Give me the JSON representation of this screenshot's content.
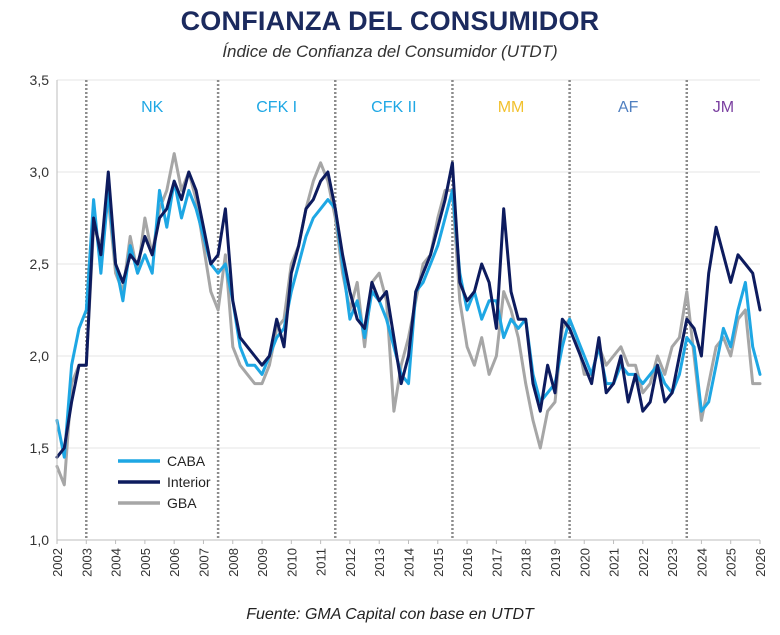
{
  "header": {
    "title": "CONFIANZA DEL CONSUMIDOR",
    "subtitle": "Índice de Confianza del Consumidor (UTDT)"
  },
  "footer": {
    "source": "Fuente: GMA Capital con base en UTDT"
  },
  "colors": {
    "CABA": "#1ea7e4",
    "Interior": "#0d1b5e",
    "GBA": "#a6a6a6",
    "grid": "#e6e6e6",
    "divider": "#8c8c8c"
  },
  "chart_data": {
    "type": "line",
    "title": "",
    "xlabel": "",
    "ylabel": "",
    "xlim": [
      2002,
      2026
    ],
    "ylim": [
      1.0,
      3.5
    ],
    "yticks": [
      "1,0",
      "1,5",
      "2,0",
      "2,5",
      "3,0",
      "3,5"
    ],
    "yticks_values": [
      1.0,
      1.5,
      2.0,
      2.5,
      3.0,
      3.5
    ],
    "xticks": [
      "2002",
      "2003",
      "2004",
      "2005",
      "2006",
      "2007",
      "2008",
      "2009",
      "2010",
      "2011",
      "2012",
      "2013",
      "2014",
      "2015",
      "2016",
      "2017",
      "2018",
      "2019",
      "2020",
      "2021",
      "2022",
      "2023",
      "2024",
      "2025",
      "2026"
    ],
    "grid": "horizontal",
    "legend": {
      "position": "bottom-left",
      "entries": [
        "CABA",
        "Interior",
        "GBA"
      ]
    },
    "periods": [
      {
        "label": "NK",
        "start": 2003.0,
        "end": 2007.5,
        "color": "#1ea7e4"
      },
      {
        "label": "CFK I",
        "start": 2007.5,
        "end": 2011.5,
        "color": "#1ea7e4"
      },
      {
        "label": "CFK II",
        "start": 2011.5,
        "end": 2015.5,
        "color": "#1ea7e4"
      },
      {
        "label": "MM",
        "start": 2015.5,
        "end": 2019.5,
        "color": "#f2c12e"
      },
      {
        "label": "AF",
        "start": 2019.5,
        "end": 2023.5,
        "color": "#4f7fc0"
      },
      {
        "label": "JM",
        "start": 2023.5,
        "end": 2026.0,
        "color": "#7a3fa0"
      }
    ],
    "dividers": [
      2003.0,
      2007.5,
      2011.5,
      2015.5,
      2019.5,
      2023.5
    ],
    "x": [
      2002.0,
      2002.25,
      2002.5,
      2002.75,
      2003.0,
      2003.25,
      2003.5,
      2003.75,
      2004.0,
      2004.25,
      2004.5,
      2004.75,
      2005.0,
      2005.25,
      2005.5,
      2005.75,
      2006.0,
      2006.25,
      2006.5,
      2006.75,
      2007.0,
      2007.25,
      2007.5,
      2007.75,
      2008.0,
      2008.25,
      2008.5,
      2008.75,
      2009.0,
      2009.25,
      2009.5,
      2009.75,
      2010.0,
      2010.25,
      2010.5,
      2010.75,
      2011.0,
      2011.25,
      2011.5,
      2011.75,
      2012.0,
      2012.25,
      2012.5,
      2012.75,
      2013.0,
      2013.25,
      2013.5,
      2013.75,
      2014.0,
      2014.25,
      2014.5,
      2014.75,
      2015.0,
      2015.25,
      2015.5,
      2015.75,
      2016.0,
      2016.25,
      2016.5,
      2016.75,
      2017.0,
      2017.25,
      2017.5,
      2017.75,
      2018.0,
      2018.25,
      2018.5,
      2018.75,
      2019.0,
      2019.25,
      2019.5,
      2019.75,
      2020.0,
      2020.25,
      2020.5,
      2020.75,
      2021.0,
      2021.25,
      2021.5,
      2021.75,
      2022.0,
      2022.25,
      2022.5,
      2022.75,
      2023.0,
      2023.25,
      2023.5,
      2023.75,
      2024.0,
      2024.25,
      2024.5,
      2024.75,
      2025.0,
      2025.25,
      2025.5,
      2025.75,
      2026.0
    ],
    "series": [
      {
        "name": "CABA",
        "values": [
          1.65,
          1.45,
          1.95,
          2.15,
          2.25,
          2.85,
          2.45,
          2.9,
          2.5,
          2.3,
          2.6,
          2.45,
          2.55,
          2.45,
          2.9,
          2.7,
          2.95,
          2.75,
          2.9,
          2.8,
          2.65,
          2.5,
          2.45,
          2.5,
          2.3,
          2.05,
          1.95,
          1.95,
          1.9,
          2.0,
          2.1,
          2.15,
          2.35,
          2.5,
          2.65,
          2.75,
          2.8,
          2.85,
          2.8,
          2.5,
          2.2,
          2.3,
          2.1,
          2.35,
          2.3,
          2.2,
          2.05,
          1.9,
          1.85,
          2.35,
          2.4,
          2.5,
          2.6,
          2.75,
          2.9,
          2.45,
          2.25,
          2.35,
          2.2,
          2.3,
          2.3,
          2.1,
          2.2,
          2.15,
          2.2,
          1.9,
          1.75,
          1.8,
          1.85,
          2.05,
          2.2,
          2.1,
          2.0,
          1.9,
          2.05,
          1.85,
          1.85,
          1.95,
          1.9,
          1.9,
          1.85,
          1.9,
          1.95,
          1.85,
          1.8,
          1.9,
          2.1,
          2.05,
          1.7,
          1.75,
          1.95,
          2.15,
          2.05,
          2.25,
          2.4,
          2.05,
          1.9
        ]
      },
      {
        "name": "Interior",
        "values": [
          1.45,
          1.5,
          1.75,
          1.95,
          1.95,
          2.75,
          2.55,
          3.0,
          2.5,
          2.4,
          2.55,
          2.5,
          2.65,
          2.55,
          2.75,
          2.8,
          2.95,
          2.85,
          3.0,
          2.9,
          2.7,
          2.5,
          2.55,
          2.8,
          2.3,
          2.1,
          2.05,
          2.0,
          1.95,
          2.0,
          2.2,
          2.05,
          2.45,
          2.6,
          2.8,
          2.85,
          2.95,
          3.0,
          2.8,
          2.55,
          2.35,
          2.2,
          2.15,
          2.4,
          2.3,
          2.35,
          2.1,
          1.85,
          2.0,
          2.35,
          2.45,
          2.55,
          2.7,
          2.85,
          3.05,
          2.4,
          2.3,
          2.35,
          2.5,
          2.4,
          2.15,
          2.8,
          2.35,
          2.2,
          2.2,
          1.85,
          1.7,
          1.95,
          1.8,
          2.2,
          2.15,
          2.05,
          1.95,
          1.85,
          2.1,
          1.8,
          1.85,
          2.0,
          1.75,
          1.9,
          1.7,
          1.75,
          1.95,
          1.75,
          1.8,
          2.0,
          2.2,
          2.15,
          2.0,
          2.45,
          2.7,
          2.55,
          2.4,
          2.55,
          2.5,
          2.45,
          2.25
        ]
      },
      {
        "name": "GBA",
        "values": [
          1.4,
          1.3,
          1.85,
          1.95,
          1.95,
          2.7,
          2.6,
          2.85,
          2.45,
          2.35,
          2.65,
          2.45,
          2.75,
          2.55,
          2.8,
          2.9,
          3.1,
          2.9,
          3.0,
          2.85,
          2.6,
          2.35,
          2.25,
          2.55,
          2.05,
          1.95,
          1.9,
          1.85,
          1.85,
          1.95,
          2.15,
          2.2,
          2.5,
          2.6,
          2.8,
          2.95,
          3.05,
          2.95,
          2.75,
          2.45,
          2.25,
          2.4,
          2.05,
          2.4,
          2.45,
          2.3,
          1.7,
          1.95,
          2.1,
          2.3,
          2.5,
          2.55,
          2.75,
          2.9,
          2.9,
          2.3,
          2.05,
          1.95,
          2.1,
          1.9,
          2.0,
          2.35,
          2.25,
          2.1,
          1.85,
          1.65,
          1.5,
          1.7,
          1.75,
          2.15,
          2.2,
          2.1,
          1.9,
          1.9,
          2.05,
          1.95,
          2.0,
          2.05,
          1.95,
          1.95,
          1.8,
          1.85,
          2.0,
          1.9,
          2.05,
          2.1,
          2.35,
          2.0,
          1.65,
          1.85,
          2.05,
          2.1,
          2.0,
          2.2,
          2.25,
          1.85,
          1.85
        ]
      }
    ]
  }
}
